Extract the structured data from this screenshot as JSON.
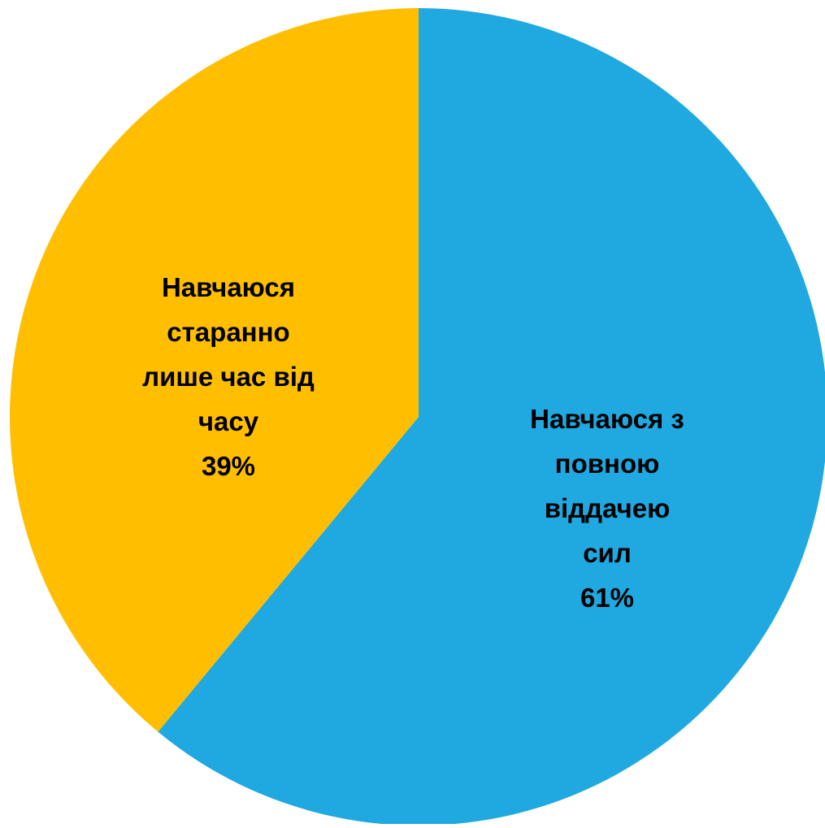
{
  "chart_data": {
    "type": "pie",
    "title": "",
    "slices": [
      {
        "label_lines": [
          "Навчаюся з",
          "повною",
          "віддачею",
          "сил"
        ],
        "value": 61,
        "value_label": "61%",
        "color": "#1FA9E0"
      },
      {
        "label_lines": [
          "Навчаюся",
          "старанно",
          "лише час від",
          "часу"
        ],
        "value": 39,
        "value_label": "39%",
        "color": "#FFBF00"
      }
    ],
    "start_angle_deg": 0,
    "direction": "clockwise",
    "legend": "none",
    "data_labels": "inside"
  }
}
